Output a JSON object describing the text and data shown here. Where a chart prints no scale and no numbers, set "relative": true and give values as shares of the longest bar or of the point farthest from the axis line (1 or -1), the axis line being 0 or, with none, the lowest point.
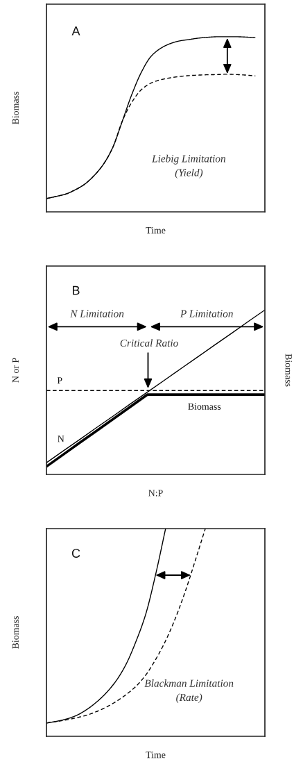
{
  "chart_data": [
    {
      "type": "line",
      "title": "A",
      "xlabel": "Time",
      "ylabel": "Biomass",
      "relative": true,
      "annotations": [
        "Liebig Limitation\n(Yield)"
      ],
      "categories": [
        null,
        null,
        null,
        null,
        null,
        null,
        null,
        null,
        null,
        null,
        null,
        null,
        null,
        null,
        null,
        null,
        null,
        null,
        null,
        null,
        null,
        null,
        null,
        null
      ],
      "series": [
        {
          "color": "#000000",
          "line_style": "solid",
          "values": [
            0.076,
            0.088,
            0.101,
            0.125,
            0.157,
            0.206,
            0.272,
            0.37,
            0.52,
            0.672,
            0.798,
            0.887,
            0.933,
            0.96,
            0.976,
            0.984,
            0.992,
            0.997,
            1.0,
            1.0,
            1.0,
            0.998,
            0.995,
            null
          ]
        },
        {
          "color": "#000000",
          "line_style": "dashed",
          "values": [
            0.076,
            0.088,
            0.101,
            0.125,
            0.157,
            0.206,
            0.272,
            0.37,
            0.52,
            0.627,
            0.698,
            0.735,
            0.754,
            0.765,
            0.773,
            0.778,
            0.781,
            0.783,
            0.784,
            0.786,
            0.784,
            0.781,
            0.776,
            null
          ]
        }
      ]
    },
    {
      "type": "line",
      "title": "B",
      "xlabel": "N:P",
      "ylabel": "N or P",
      "relative": true,
      "annotations": [
        "N Limitation",
        "P Limitation",
        "Critical Ratio",
        "Biomass"
      ],
      "categories": [
        null,
        null,
        null,
        null,
        null,
        null,
        null,
        null,
        null,
        null,
        null,
        null,
        null,
        null
      ],
      "series": [
        {
          "name": "N",
          "color": "#000000",
          "line_style": "solid",
          "values": [
            0.071,
            0.143,
            0.214,
            0.286,
            0.357,
            0.429,
            0.5,
            0.571,
            0.643,
            0.714,
            0.786,
            0.857,
            0.929,
            1.0
          ]
        },
        {
          "name": "P",
          "color": "#000000",
          "line_style": "dashed",
          "values": [
            0.51,
            0.51,
            0.51,
            0.51,
            0.51,
            0.51,
            0.51,
            0.51,
            0.51,
            0.51,
            0.51,
            0.51,
            0.51,
            0.51
          ]
        },
        {
          "name": "Biomass",
          "color": "#000000",
          "line_style": "solid",
          "values": [
            0.048,
            0.121,
            0.194,
            0.266,
            0.339,
            0.412,
            0.485,
            0.485,
            0.485,
            0.485,
            0.485,
            0.485,
            0.485,
            0.485
          ]
        }
      ]
    },
    {
      "type": "line",
      "title": "C",
      "xlabel": "Time",
      "ylabel": "Biomass",
      "relative": true,
      "annotations": [
        "Blackman Limitation\n(Rate)"
      ],
      "categories": [
        null,
        null,
        null,
        null,
        null,
        null,
        null,
        null,
        null,
        null,
        null,
        null,
        null,
        null,
        null,
        null,
        null,
        null,
        null,
        null,
        null,
        null,
        null
      ],
      "series": [
        {
          "color": "#000000",
          "line_style": "solid",
          "values": [
            0.064,
            0.072,
            0.083,
            0.1,
            0.127,
            0.163,
            0.208,
            0.266,
            0.345,
            0.455,
            0.588,
            0.78,
            1.0,
            null,
            null,
            null,
            null,
            null,
            null,
            null,
            null,
            null,
            null
          ]
        },
        {
          "color": "#000000",
          "line_style": "dashed",
          "values": [
            0.064,
            0.071,
            0.079,
            0.089,
            0.101,
            0.118,
            0.14,
            0.167,
            0.2,
            0.24,
            0.295,
            0.37,
            0.46,
            0.57,
            0.7,
            0.848,
            1.0,
            null,
            null,
            null,
            null,
            null,
            null
          ]
        }
      ]
    }
  ]
}
